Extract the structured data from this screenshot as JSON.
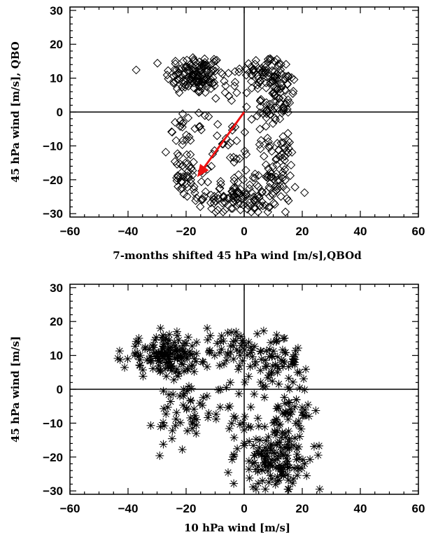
{
  "chart_data": [
    {
      "type": "scatter",
      "marker": "diamond",
      "xlabel": "7-months shifted 45 hPa wind [m/s],QBOd",
      "ylabel": "45 hPa wind [m/s], QBO",
      "xlim": [
        -60,
        60
      ],
      "ylim": [
        -31,
        31
      ],
      "xticks": [
        "−60",
        "−40",
        "−20",
        "0",
        "20",
        "40",
        "60"
      ],
      "yticks": [
        "30",
        "20",
        "10",
        "0",
        "−10",
        "−20",
        "−30"
      ],
      "xtick_values": [
        -60,
        -40,
        -20,
        0,
        20,
        40,
        60
      ],
      "ytick_values": [
        30,
        20,
        10,
        0,
        -10,
        -20,
        -30
      ],
      "zero_lines": true,
      "arrow": {
        "from": [
          0,
          0
        ],
        "to": [
          -16,
          -19
        ],
        "color": "#ee1111"
      },
      "clusters": [
        {
          "cx": -17,
          "cy": 11,
          "sx": 5,
          "sy": 3,
          "n": 130
        },
        {
          "cx": 7,
          "cy": 12,
          "sx": 4,
          "sy": 2.5,
          "n": 55
        },
        {
          "cx": 10,
          "cy": 2,
          "sx": 3,
          "sy": 5,
          "n": 60
        },
        {
          "cx": -2,
          "cy": -25,
          "sx": 7,
          "sy": 2.5,
          "n": 110
        },
        {
          "cx": 11,
          "cy": -17,
          "sx": 3.5,
          "sy": 6,
          "n": 75
        },
        {
          "cx": -20,
          "cy": -9,
          "sx": 3,
          "sy": 4,
          "n": 35
        },
        {
          "cx": -20,
          "cy": -20,
          "sx": 3,
          "sy": 2.5,
          "n": 30
        },
        {
          "cx": -4,
          "cy": -12,
          "sx": 5,
          "sy": 6,
          "n": 30
        },
        {
          "cx": -6,
          "cy": 9,
          "sx": 4,
          "sy": 3,
          "n": 20
        },
        {
          "cx": 13,
          "cy": 8,
          "sx": 2,
          "sy": 3,
          "n": 25
        }
      ]
    },
    {
      "type": "scatter",
      "marker": "asterisk",
      "xlabel": "10 hPa wind [m/s]",
      "ylabel": "45 hPa wind [m/s]",
      "xlim": [
        -60,
        60
      ],
      "ylim": [
        -31,
        31
      ],
      "xticks": [
        "−60",
        "−40",
        "−20",
        "0",
        "20",
        "40",
        "60"
      ],
      "yticks": [
        "30",
        "20",
        "10",
        "0",
        "−10",
        "−20",
        "−30"
      ],
      "xtick_values": [
        -60,
        -40,
        -20,
        0,
        20,
        40,
        60
      ],
      "ytick_values": [
        30,
        20,
        10,
        0,
        -10,
        -20,
        -30
      ],
      "zero_lines": true,
      "clusters": [
        {
          "cx": -27,
          "cy": 10,
          "sx": 7,
          "sy": 3,
          "n": 150
        },
        {
          "cx": -5,
          "cy": 12,
          "sx": 6,
          "sy": 2.5,
          "n": 45
        },
        {
          "cx": 12,
          "cy": 9,
          "sx": 6,
          "sy": 3,
          "n": 55
        },
        {
          "cx": 10,
          "cy": -20,
          "sx": 6,
          "sy": 5,
          "n": 150
        },
        {
          "cx": 17,
          "cy": -7,
          "sx": 4,
          "sy": 3,
          "n": 35
        },
        {
          "cx": -18,
          "cy": -4,
          "sx": 5,
          "sy": 4,
          "n": 30
        },
        {
          "cx": -22,
          "cy": -11,
          "sx": 5,
          "sy": 3,
          "n": 20
        },
        {
          "cx": -3,
          "cy": -8,
          "sx": 5,
          "sy": 4,
          "n": 20
        },
        {
          "cx": 12,
          "cy": 2,
          "sx": 5,
          "sy": 3,
          "n": 20
        }
      ]
    }
  ]
}
